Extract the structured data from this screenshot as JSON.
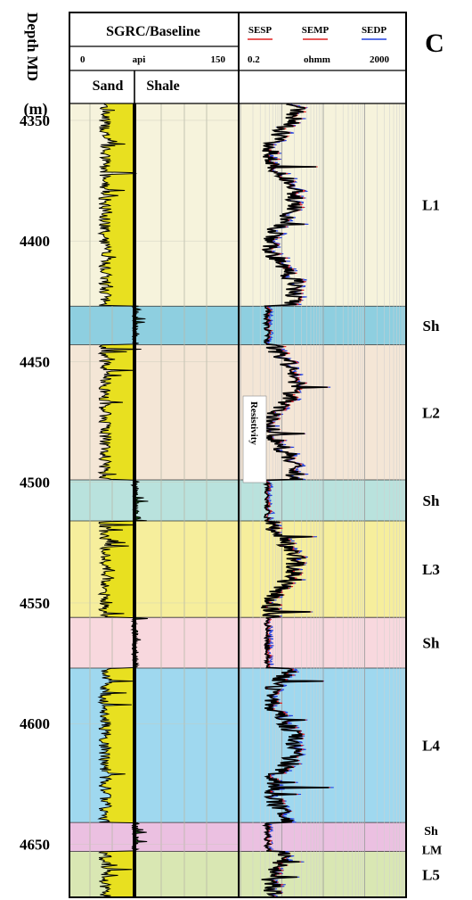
{
  "panel_letter": "C",
  "depth_track": {
    "title": "Depth MD",
    "unit": "(m)",
    "ticks": [
      4350,
      4400,
      4450,
      4500,
      4550,
      4600,
      4650
    ],
    "range": [
      4343,
      4672
    ]
  },
  "gr_track": {
    "title": "SGRC/Baseline",
    "scale_min": "0",
    "scale_unit": "api",
    "scale_max": "150",
    "sand_label": "Sand",
    "shale_label": "Shale",
    "sand_color": "#e8e020",
    "shale_color": "#1a5a1a"
  },
  "res_track": {
    "curves": [
      {
        "name": "SESP",
        "color": "#e02020"
      },
      {
        "name": "SEMP",
        "color": "#e02020"
      },
      {
        "name": "SEDP",
        "color": "#2040e0"
      }
    ],
    "scale_min": "0.2",
    "scale_unit": "ohmm",
    "scale_max": "2000",
    "annotation": "Resistivity"
  },
  "zones": [
    {
      "label": "L1",
      "top": 4343,
      "base": 4427,
      "color": "#f6f3dc"
    },
    {
      "label": "Sh",
      "top": 4427,
      "base": 4443,
      "color": "#8ecfe0"
    },
    {
      "label": "L2",
      "top": 4443,
      "base": 4499,
      "color": "#f4e6d6"
    },
    {
      "label": "Sh",
      "top": 4499,
      "base": 4516,
      "color": "#b9e2dd"
    },
    {
      "label": "L3",
      "top": 4516,
      "base": 4556,
      "color": "#f6ee9c"
    },
    {
      "label": "Sh",
      "top": 4556,
      "base": 4577,
      "color": "#f8d8de"
    },
    {
      "label": "L4",
      "top": 4577,
      "base": 4641,
      "color": "#9fd8ef"
    },
    {
      "label": "Sh",
      "top": 4641,
      "base": 4653,
      "color": "#ebc0e1"
    },
    {
      "label": "L5",
      "top": 4653,
      "base": 4672,
      "color": "#d9e7b3"
    }
  ],
  "extra_zone_label": "LM"
}
